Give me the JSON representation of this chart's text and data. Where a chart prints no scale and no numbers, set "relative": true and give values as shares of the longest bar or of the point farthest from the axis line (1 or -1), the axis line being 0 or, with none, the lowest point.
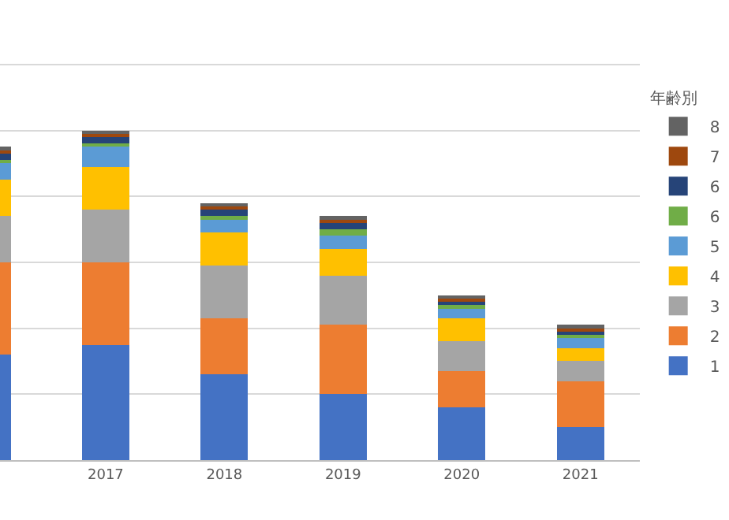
{
  "chart_data": {
    "type": "bar",
    "stacked": true,
    "relative": true,
    "legend_title": "年齢別",
    "legend": "right",
    "grid": "y",
    "categories": [
      null,
      "2017",
      "2018",
      "2019",
      "2020",
      "2021"
    ],
    "series": [
      {
        "name": "1",
        "color": "#4472c4",
        "values": [
          0.32,
          0.35,
          0.26,
          0.2,
          0.16,
          0.1
        ]
      },
      {
        "name": "2",
        "color": "#ed7d31",
        "values": [
          0.28,
          0.25,
          0.17,
          0.21,
          0.11,
          0.14
        ]
      },
      {
        "name": "3",
        "color": "#a5a5a5",
        "values": [
          0.14,
          0.16,
          0.16,
          0.15,
          0.09,
          0.06
        ]
      },
      {
        "name": "4",
        "color": "#ffc000",
        "values": [
          0.11,
          0.13,
          0.1,
          0.08,
          0.07,
          0.04
        ]
      },
      {
        "name": "5",
        "color": "#5b9bd5",
        "values": [
          0.05,
          0.06,
          0.04,
          0.04,
          0.03,
          0.03
        ]
      },
      {
        "name": "6",
        "color": "#70ad47",
        "values": [
          0.01,
          0.01,
          0.01,
          0.02,
          0.01,
          0.01
        ]
      },
      {
        "name": "6",
        "color": "#264478",
        "values": [
          0.02,
          0.02,
          0.02,
          0.02,
          0.01,
          0.01
        ]
      },
      {
        "name": "7",
        "color": "#9e480e",
        "values": [
          0.01,
          0.01,
          0.01,
          0.01,
          0.01,
          0.01
        ]
      },
      {
        "name": "8",
        "color": "#636363",
        "values": [
          0.01,
          0.01,
          0.01,
          0.01,
          0.01,
          0.01
        ]
      }
    ]
  }
}
